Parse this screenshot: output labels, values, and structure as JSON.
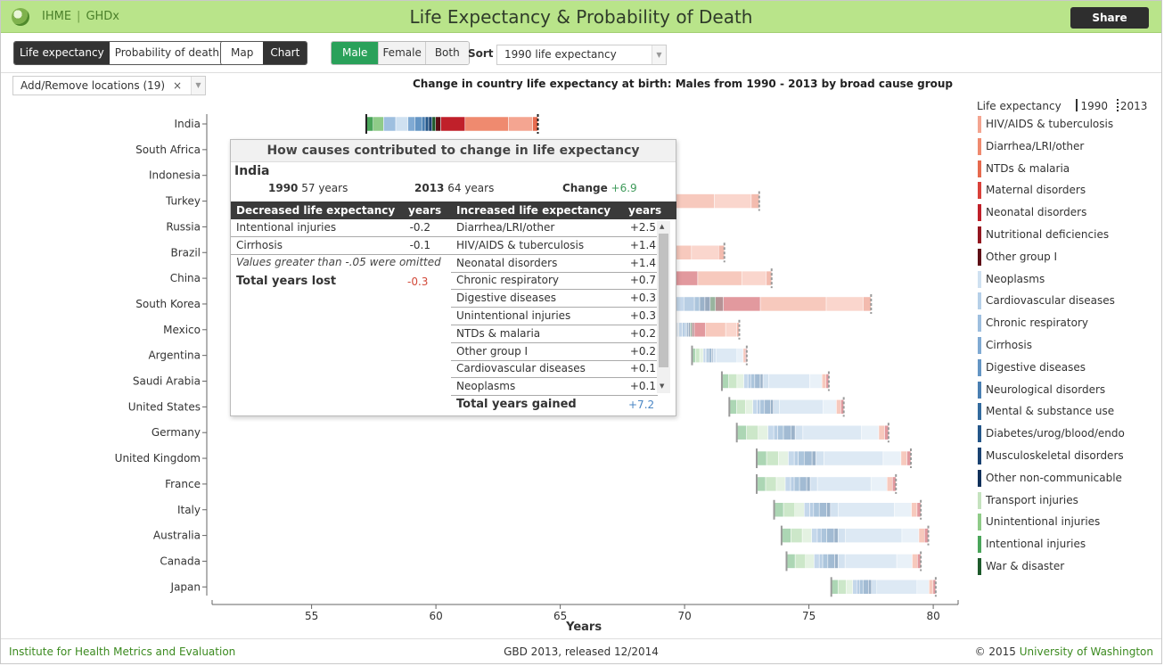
{
  "header": {
    "brand_left": "IHME",
    "brand_right": "GHDx",
    "title": "Life Expectancy & Probability of Death",
    "share_label": "Share"
  },
  "toolbar": {
    "measure_options": [
      "Life expectancy",
      "Probability of death"
    ],
    "measure_selected": "Life expectancy",
    "view_options": [
      "Map",
      "Chart"
    ],
    "view_selected": "Chart",
    "sex_options": [
      "Male",
      "Female",
      "Both"
    ],
    "sex_selected": "Male",
    "sort_label": "Sort",
    "sort_value": "1990 life expectancy",
    "locations_label": "Add/Remove locations (19)",
    "locations_clear": "×"
  },
  "colors": {
    "accent_green": "#2aa15a",
    "topbar": "#b9e48a",
    "brand_text": "#4a7f2a"
  },
  "chart_data": {
    "type": "bar",
    "title": "Change in country life expectancy at birth: Males from 1990 - 2013 by broad cause group",
    "xlabel": "Years",
    "xlim": [
      51,
      81
    ],
    "xticks": [
      55,
      60,
      65,
      70,
      75,
      80
    ],
    "legend": {
      "title": "Life expectancy",
      "marker_1990": "1990",
      "marker_2013": "2013",
      "placement": "right",
      "items": [
        {
          "name": "HIV/AIDS & tuberculosis",
          "color": "#f4a591"
        },
        {
          "name": "Diarrhea/LRI/other",
          "color": "#ef8a6f"
        },
        {
          "name": "NTDs & malaria",
          "color": "#e66a4e"
        },
        {
          "name": "Maternal disorders",
          "color": "#d9413a"
        },
        {
          "name": "Neonatal disorders",
          "color": "#c0202a"
        },
        {
          "name": "Nutritional deficiencies",
          "color": "#931620"
        },
        {
          "name": "Other group I",
          "color": "#5e0f16"
        },
        {
          "name": "Neoplasms",
          "color": "#cfe1f1"
        },
        {
          "name": "Cardiovascular diseases",
          "color": "#b6d0e8"
        },
        {
          "name": "Chronic respiratory",
          "color": "#9ebfdf"
        },
        {
          "name": "Cirrhosis",
          "color": "#80aad3"
        },
        {
          "name": "Digestive diseases",
          "color": "#6495c4"
        },
        {
          "name": "Neurological disorders",
          "color": "#4a7fb2"
        },
        {
          "name": "Mental & substance use",
          "color": "#336b9e"
        },
        {
          "name": "Diabetes/urog/blood/endo",
          "color": "#245689"
        },
        {
          "name": "Musculoskeletal disorders",
          "color": "#1a4271"
        },
        {
          "name": "Other non-communicable",
          "color": "#10305a"
        },
        {
          "name": "Transport injuries",
          "color": "#c5e3bf"
        },
        {
          "name": "Unintentional injuries",
          "color": "#8fcb88"
        },
        {
          "name": "Intentional injuries",
          "color": "#4aa55a"
        },
        {
          "name": "War & disaster",
          "color": "#1d5a2b"
        }
      ]
    },
    "countries": [
      {
        "name": "India",
        "le1990": 57.2,
        "le2013": 64.1
      },
      {
        "name": "South Africa",
        "le1990": 57.3,
        "le2013": 55.0
      },
      {
        "name": "Indonesia",
        "le1990": 60.8,
        "le2013": 67.6
      },
      {
        "name": "Turkey",
        "le1990": 62.5,
        "le2013": 73.0
      },
      {
        "name": "Russia",
        "le1990": 63.5,
        "le2013": 65.0
      },
      {
        "name": "Brazil",
        "le1990": 63.9,
        "le2013": 71.6
      },
      {
        "name": "China",
        "le1990": 66.5,
        "le2013": 73.5
      },
      {
        "name": "South Korea",
        "le1990": 67.0,
        "le2013": 77.5
      },
      {
        "name": "Mexico",
        "le1990": 69.0,
        "le2013": 72.2
      },
      {
        "name": "Argentina",
        "le1990": 70.3,
        "le2013": 72.5
      },
      {
        "name": "Saudi Arabia",
        "le1990": 71.5,
        "le2013": 75.8
      },
      {
        "name": "United States",
        "le1990": 71.8,
        "le2013": 76.4
      },
      {
        "name": "Germany",
        "le1990": 72.1,
        "le2013": 78.2
      },
      {
        "name": "United Kingdom",
        "le1990": 72.9,
        "le2013": 79.1
      },
      {
        "name": "France",
        "le1990": 72.9,
        "le2013": 78.5
      },
      {
        "name": "Italy",
        "le1990": 73.6,
        "le2013": 79.5
      },
      {
        "name": "Australia",
        "le1990": 73.9,
        "le2013": 79.8
      },
      {
        "name": "Canada",
        "le1990": 74.1,
        "le2013": 79.5
      },
      {
        "name": "Japan",
        "le1990": 75.9,
        "le2013": 80.1
      }
    ]
  },
  "tooltip": {
    "heading": "How causes contributed to change in life expectancy",
    "location": "India",
    "year1": "1990",
    "year1_value": "57 years",
    "year2": "2013",
    "year2_value": "64 years",
    "change_label": "Change",
    "change_value": "+6.9",
    "decreased_header": "Decreased life expectancy",
    "increased_header": "Increased life expectancy",
    "years_header": "years",
    "decreased_rows": [
      {
        "cause": "Intentional injuries",
        "value": "-0.2"
      },
      {
        "cause": "Cirrhosis",
        "value": "-0.1"
      }
    ],
    "omitted_note": "Values greater than -.05 were omitted",
    "total_lost_label": "Total years lost",
    "total_lost_value": "-0.3",
    "increased_rows": [
      {
        "cause": "Diarrhea/LRI/other",
        "value": "+2.5"
      },
      {
        "cause": "HIV/AIDS & tuberculosis",
        "value": "+1.4"
      },
      {
        "cause": "Neonatal disorders",
        "value": "+1.4"
      },
      {
        "cause": "Chronic respiratory",
        "value": "+0.7"
      },
      {
        "cause": "Digestive diseases",
        "value": "+0.3"
      },
      {
        "cause": "Unintentional injuries",
        "value": "+0.3"
      },
      {
        "cause": "NTDs & malaria",
        "value": "+0.2"
      },
      {
        "cause": "Other group I",
        "value": "+0.2"
      },
      {
        "cause": "Cardiovascular diseases",
        "value": "+0.1"
      },
      {
        "cause": "Neoplasms",
        "value": "+0.1"
      }
    ],
    "total_gained_label": "Total years gained",
    "total_gained_value": "+7.2"
  },
  "footer": {
    "left": "Institute for Health Metrics and Evaluation",
    "center": "GBD 2013, released 12/2014",
    "right_prefix": "© 2015 ",
    "right_link": "University of Washington"
  }
}
